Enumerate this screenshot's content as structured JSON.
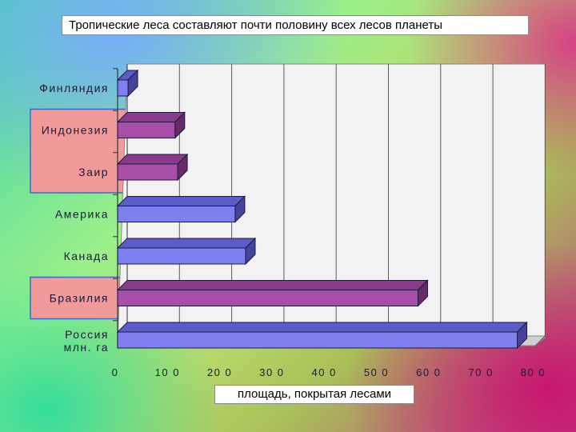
{
  "title": "Тропические леса составляют почти половину всех лесов планеты",
  "colors": {
    "bar_blue_front": "#7f7ff0",
    "bar_blue_top": "#5c5cc8",
    "bar_blue_side": "#44449a",
    "bar_purple_front": "#a84ea8",
    "bar_purple_top": "#8a3a8a",
    "bar_purple_side": "#6a2a6a",
    "highlight_fill": "#f09a9a",
    "highlight_border": "#4466cc",
    "plot_bg": "#f2f2f2",
    "floor": "#d0d0d0"
  },
  "chart_data": {
    "type": "bar",
    "orientation": "horizontal",
    "title": "Тропические леса составляют почти половину всех лесов планеты",
    "xlabel": "площадь, покрытая лесами",
    "ylabel": "",
    "xlim": [
      0,
      800
    ],
    "grid": true,
    "x_tick_labels": [
      "0",
      "10 0",
      "20 0",
      "30 0",
      "40 0",
      "50 0",
      "60 0",
      "70 0",
      "80 0"
    ],
    "categories": [
      {
        "label": [
          "Финляндия"
        ],
        "value": 20,
        "tropical": false
      },
      {
        "label": [
          "Индонезия"
        ],
        "value": 110,
        "tropical": true
      },
      {
        "label": [
          "Заир"
        ],
        "value": 115,
        "tropical": true
      },
      {
        "label": [
          "Америка"
        ],
        "value": 225,
        "tropical": false
      },
      {
        "label": [
          "Канада"
        ],
        "value": 245,
        "tropical": false
      },
      {
        "label": [
          "Бразилия"
        ],
        "value": 575,
        "tropical": true
      },
      {
        "label": [
          "Россия",
          "млн. га"
        ],
        "value": 765,
        "tropical": false
      }
    ]
  }
}
